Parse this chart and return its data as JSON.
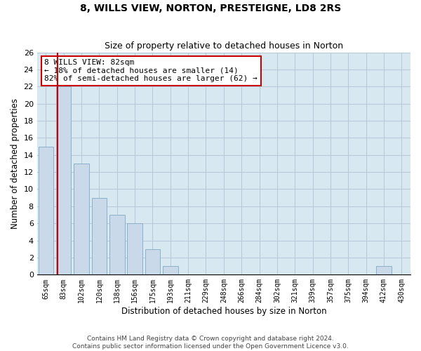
{
  "title": "8, WILLS VIEW, NORTON, PRESTEIGNE, LD8 2RS",
  "subtitle": "Size of property relative to detached houses in Norton",
  "xlabel": "Distribution of detached houses by size in Norton",
  "ylabel": "Number of detached properties",
  "categories": [
    "65sqm",
    "83sqm",
    "102sqm",
    "120sqm",
    "138sqm",
    "156sqm",
    "175sqm",
    "193sqm",
    "211sqm",
    "229sqm",
    "248sqm",
    "266sqm",
    "284sqm",
    "302sqm",
    "321sqm",
    "339sqm",
    "357sqm",
    "375sqm",
    "394sqm",
    "412sqm",
    "430sqm"
  ],
  "values": [
    15,
    22,
    13,
    9,
    7,
    6,
    3,
    1,
    0,
    0,
    0,
    0,
    0,
    0,
    0,
    0,
    0,
    0,
    0,
    1,
    0
  ],
  "bar_color": "#c9d9ea",
  "bar_edge_color": "#8ab0cc",
  "vline_x_index": 1,
  "vline_color": "#cc0000",
  "annotation_line1": "8 WILLS VIEW: 82sqm",
  "annotation_line2": "← 18% of detached houses are smaller (14)",
  "annotation_line3": "82% of semi-detached houses are larger (62) →",
  "annotation_box_facecolor": "#ffffff",
  "annotation_box_edgecolor": "#cc0000",
  "ylim": [
    0,
    26
  ],
  "yticks": [
    0,
    2,
    4,
    6,
    8,
    10,
    12,
    14,
    16,
    18,
    20,
    22,
    24,
    26
  ],
  "grid_color": "#b8c8d8",
  "background_color": "#d8e8f0",
  "footnote_line1": "Contains HM Land Registry data © Crown copyright and database right 2024.",
  "footnote_line2": "Contains public sector information licensed under the Open Government Licence v3.0.",
  "title_fontsize": 10,
  "subtitle_fontsize": 9,
  "xlabel_fontsize": 8.5,
  "ylabel_fontsize": 8.5,
  "tick_fontsize": 8,
  "xtick_fontsize": 7,
  "annotation_fontsize": 8,
  "footnote_fontsize": 6.5
}
